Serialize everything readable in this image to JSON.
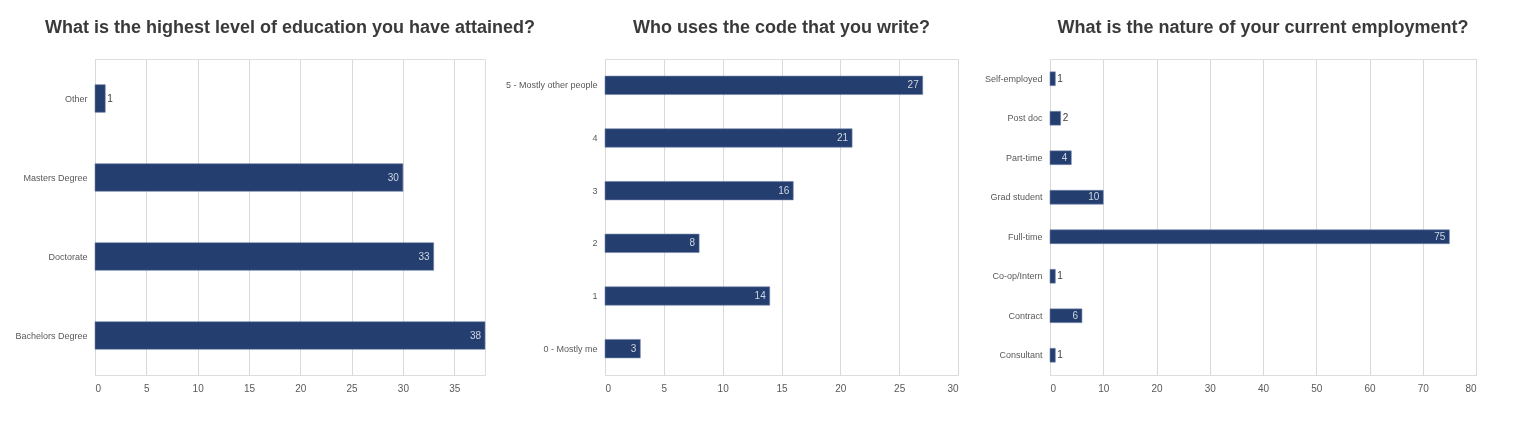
{
  "chart_data": [
    {
      "type": "bar",
      "orientation": "horizontal",
      "title": "What is the highest level of education you have attained?",
      "categories": [
        "Other",
        "Masters Degree",
        "Doctorate",
        "Bachelors Degree"
      ],
      "values": [
        1,
        30,
        33,
        38
      ],
      "color": "#233e6f",
      "xlim": [
        0,
        38
      ],
      "xticks": [
        0,
        5,
        10,
        15,
        20,
        25,
        30,
        35
      ],
      "grid": "x",
      "data_labels": true
    },
    {
      "type": "bar",
      "orientation": "horizontal",
      "title": "Who uses the code that you write?",
      "categories": [
        "5 - Mostly other people",
        "4",
        "3",
        "2",
        "1",
        "0 - Mostly me"
      ],
      "values": [
        27,
        21,
        16,
        8,
        14,
        3
      ],
      "color": "#233e6f",
      "xlim": [
        0,
        30
      ],
      "xticks": [
        0,
        5,
        10,
        15,
        20,
        25,
        30
      ],
      "grid": "x",
      "data_labels": true
    },
    {
      "type": "bar",
      "orientation": "horizontal",
      "title": "What is the nature of your current employment?",
      "categories": [
        "Self-employed",
        "Post doc",
        "Part-time",
        "Grad student",
        "Full-time",
        "Co-op/Intern",
        "Contract",
        "Consultant"
      ],
      "values": [
        1,
        2,
        4,
        10,
        75,
        1,
        6,
        1
      ],
      "color": "#233e6f",
      "xlim": [
        0,
        80
      ],
      "xticks": [
        0,
        10,
        20,
        30,
        40,
        50,
        60,
        70,
        80
      ],
      "grid": "x",
      "data_labels": true
    }
  ]
}
